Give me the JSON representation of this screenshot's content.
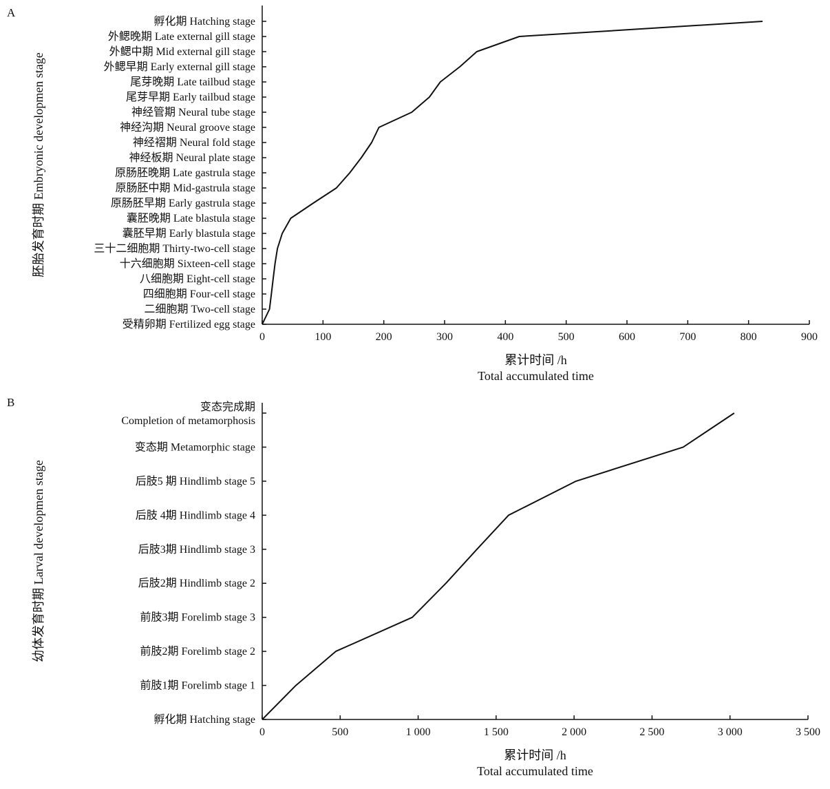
{
  "chart_data": [
    {
      "panel": "A",
      "type": "line",
      "ylabel": "胚胎发育时期 Embryonic developmen stage",
      "xlabel_cn": "累计时间 /h",
      "xlabel_en": "Total accumulated time",
      "xlim": [
        0,
        900
      ],
      "xticks": [
        "0",
        "100",
        "200",
        "300",
        "400",
        "500",
        "600",
        "700",
        "800",
        "900"
      ],
      "categories": [
        "受精卵期 Fertilized egg stage",
        "二细胞期 Two-cell stage",
        "四细胞期 Four-cell stage",
        "八细胞期 Eight-cell stage",
        "十六细胞期 Sixteen-cell stage",
        "三十二细胞期 Thirty-two-cell stage",
        "囊胚早期 Early blastula stage",
        "囊胚晚期 Late blastula stage",
        "原肠胚早期 Early gastrula stage",
        "原肠胚中期 Mid-gastrula stage",
        "原肠胚晚期 Late gastrula stage",
        "神经板期 Neural plate stage",
        "神经褶期 Neural fold stage",
        "神经沟期 Neural groove stage",
        "神经管期 Neural tube stage",
        "尾芽早期 Early tailbud stage",
        "尾芽晚期 Late tailbud stage",
        "外鳃早期 Early external gill stage",
        "外鳃中期 Mid external gill stage",
        "外鳃晚期 Late external gill stage",
        "孵化期 Hatching stage"
      ],
      "x": [
        0,
        12,
        15,
        18,
        21,
        25,
        33,
        47,
        84,
        122,
        144,
        163,
        180,
        192,
        246,
        275,
        293,
        325,
        353,
        423,
        823
      ],
      "y": [
        0,
        1,
        2,
        3,
        4,
        5,
        6,
        7,
        8,
        9,
        10,
        11,
        12,
        13,
        14,
        15,
        16,
        17,
        18,
        19,
        20
      ]
    },
    {
      "panel": "B",
      "type": "line",
      "ylabel": "幼体发育时期 Larval developmen stage",
      "xlabel_cn": "累计时间 /h",
      "xlabel_en": "Total accumulated time",
      "xlim": [
        0,
        3500
      ],
      "xticks": [
        "0",
        "500",
        "1 000",
        "1 500",
        "2 000",
        "2 500",
        "3 000",
        "3 500"
      ],
      "categories": [
        "孵化期 Hatching stage",
        "前肢1期 Forelimb stage 1",
        "前肢2期 Forelimb stage 2",
        "前肢3期 Forelimb stage 3",
        "后肢2期 Hindlimb stage 2",
        "后肢3期 Hindlimb stage 3",
        "后肢 4期 Hindlimb stage 4",
        "后肢5 期 Hindlimb stage 5",
        "变态期 Metamorphic stage",
        "变态完成期|Completion of metamorphosis"
      ],
      "x": [
        0,
        216,
        472,
        962,
        1178,
        1377,
        1580,
        2012,
        2700,
        3027
      ],
      "y": [
        0,
        1,
        2,
        3,
        4,
        5,
        6,
        7,
        8,
        9
      ]
    }
  ]
}
